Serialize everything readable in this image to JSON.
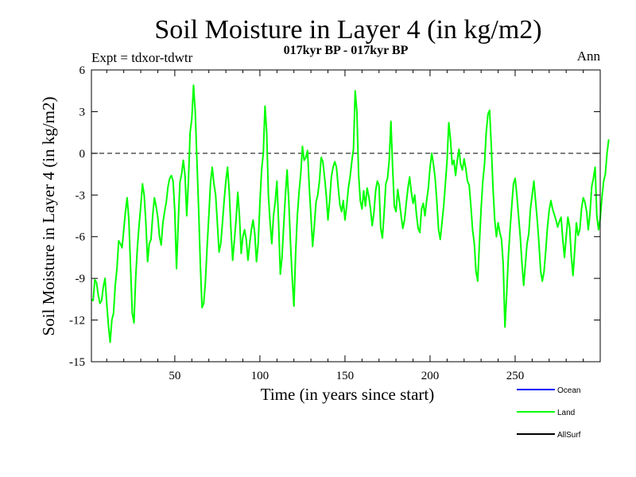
{
  "chart_data": {
    "type": "line",
    "title": "Soil Moisture in Layer 4 (in kg/m2)",
    "subtitle": "017kyr BP - 017kyr BP",
    "experiment_label": "Expt = tdxor-tdwtr",
    "period_label": "Ann",
    "xlabel": "Time (in years since start)",
    "ylabel": "Soil Moisture in Layer 4 (in kg/m2)",
    "xlim": [
      1,
      300
    ],
    "ylim": [
      -15,
      6
    ],
    "x_ticks": [
      50,
      100,
      150,
      200,
      250
    ],
    "y_ticks": [
      6,
      3,
      0,
      -3,
      -6,
      -9,
      -12,
      -15
    ],
    "zero_line": "dashed",
    "grid": false,
    "legend_position": "bottom-right",
    "series": [
      {
        "name": "Ocean",
        "color": "#0000ff",
        "values": []
      },
      {
        "name": "Land",
        "color": "#00ff00",
        "x_start": 1,
        "x_step": 1,
        "values": [
          -10.5,
          -10.6,
          -9.1,
          -9.3,
          -10.2,
          -10.8,
          -10.6,
          -9.6,
          -9.0,
          -10.8,
          -12.4,
          -13.6,
          -12.0,
          -11.5,
          -9.5,
          -8.3,
          -6.3,
          -6.5,
          -6.8,
          -5.5,
          -4.2,
          -3.2,
          -4.8,
          -8.2,
          -11.5,
          -12.2,
          -9.0,
          -6.8,
          -5.2,
          -3.8,
          -2.2,
          -3.0,
          -5.0,
          -7.8,
          -6.5,
          -6.2,
          -4.5,
          -3.2,
          -3.8,
          -4.6,
          -6.0,
          -6.6,
          -5.0,
          -4.2,
          -3.5,
          -2.4,
          -1.8,
          -1.6,
          -2.0,
          -4.2,
          -8.3,
          -5.1,
          -2.1,
          -1.5,
          -0.5,
          -1.6,
          -4.5,
          -2.0,
          1.5,
          2.5,
          4.9,
          3.0,
          -0.5,
          -4.0,
          -8.0,
          -11.1,
          -10.8,
          -9.2,
          -6.7,
          -4.5,
          -2.1,
          -1.0,
          -2.2,
          -3.0,
          -5.0,
          -7.1,
          -6.5,
          -5.0,
          -3.4,
          -2.0,
          -1.0,
          -2.8,
          -5.5,
          -7.7,
          -6.3,
          -4.8,
          -2.8,
          -4.5,
          -7.2,
          -6.0,
          -5.5,
          -6.2,
          -7.7,
          -6.5,
          -5.5,
          -4.8,
          -5.8,
          -7.8,
          -6.5,
          -3.6,
          -1.2,
          0.0,
          3.4,
          1.5,
          -3.0,
          -5.0,
          -6.5,
          -4.5,
          -3.5,
          -2.0,
          -5.0,
          -8.7,
          -7.5,
          -5.2,
          -3.0,
          -1.2,
          -3.5,
          -6.5,
          -9.0,
          -11.0,
          -7.2,
          -4.5,
          -2.8,
          -1.5,
          0.5,
          -0.5,
          -0.3,
          0.2,
          -2.4,
          -4.5,
          -6.7,
          -5.2,
          -3.5,
          -3.0,
          -2.0,
          -0.3,
          -0.6,
          -1.7,
          -3.0,
          -4.8,
          -3.4,
          -1.7,
          -1.0,
          -0.6,
          -1.0,
          -2.4,
          -3.7,
          -4.2,
          -3.4,
          -4.8,
          -3.8,
          -2.5,
          -1.7,
          -0.6,
          0.3,
          4.5,
          3.0,
          -1.5,
          -3.4,
          -4.0,
          -2.7,
          -3.8,
          -2.5,
          -3.1,
          -4.0,
          -5.2,
          -4.3,
          -2.7,
          -2.0,
          -2.3,
          -5.4,
          -6.1,
          -4.3,
          -2.2,
          -1.8,
          -0.5,
          2.3,
          -1.0,
          -3.8,
          -4.2,
          -2.6,
          -3.5,
          -4.5,
          -5.4,
          -4.8,
          -3.6,
          -2.5,
          -1.7,
          -2.8,
          -3.6,
          -3.0,
          -4.4,
          -5.4,
          -5.7,
          -4.0,
          -3.6,
          -4.5,
          -3.4,
          -2.5,
          -1.0,
          0.0,
          -0.8,
          -1.8,
          -3.5,
          -5.5,
          -6.2,
          -5.0,
          -3.8,
          -2.2,
          -0.5,
          2.2,
          1.0,
          -0.8,
          -0.5,
          -1.6,
          -0.5,
          0.3,
          -0.8,
          -1.2,
          -0.4,
          -1.1,
          -2.0,
          -2.3,
          -3.8,
          -5.5,
          -6.5,
          -8.5,
          -9.2,
          -6.5,
          -4.0,
          -2.0,
          -0.8,
          1.5,
          2.8,
          3.1,
          0.5,
          -2.5,
          -4.8,
          -6.0,
          -5.0,
          -5.7,
          -6.2,
          -8.0,
          -12.5,
          -10.2,
          -7.5,
          -5.5,
          -3.8,
          -2.2,
          -1.8,
          -3.0,
          -4.5,
          -6.0,
          -7.9,
          -9.5,
          -8.0,
          -6.5,
          -5.8,
          -4.0,
          -3.0,
          -2.0,
          -3.4,
          -4.8,
          -6.5,
          -8.5,
          -9.2,
          -8.5,
          -7.0,
          -5.3,
          -4.1,
          -3.4,
          -4.0,
          -4.4,
          -4.8,
          -5.3,
          -4.9,
          -4.6,
          -6.2,
          -7.5,
          -6.0,
          -4.6,
          -5.3,
          -7.4,
          -8.8,
          -7.0,
          -5.0,
          -5.9,
          -5.5,
          -4.0,
          -3.2,
          -3.5,
          -4.2,
          -5.5,
          -4.3,
          -2.4,
          -1.8,
          -1.0,
          -4.5,
          -5.5,
          -4.7,
          -3.2,
          -2.0,
          -1.5,
          0.0,
          1.0
        ]
      },
      {
        "name": "AllSurf",
        "color": "#000000",
        "values": []
      }
    ]
  },
  "colors": {
    "land": "#00ff00",
    "ocean": "#0000ff",
    "allsurf": "#000000",
    "axes": "#000000"
  }
}
